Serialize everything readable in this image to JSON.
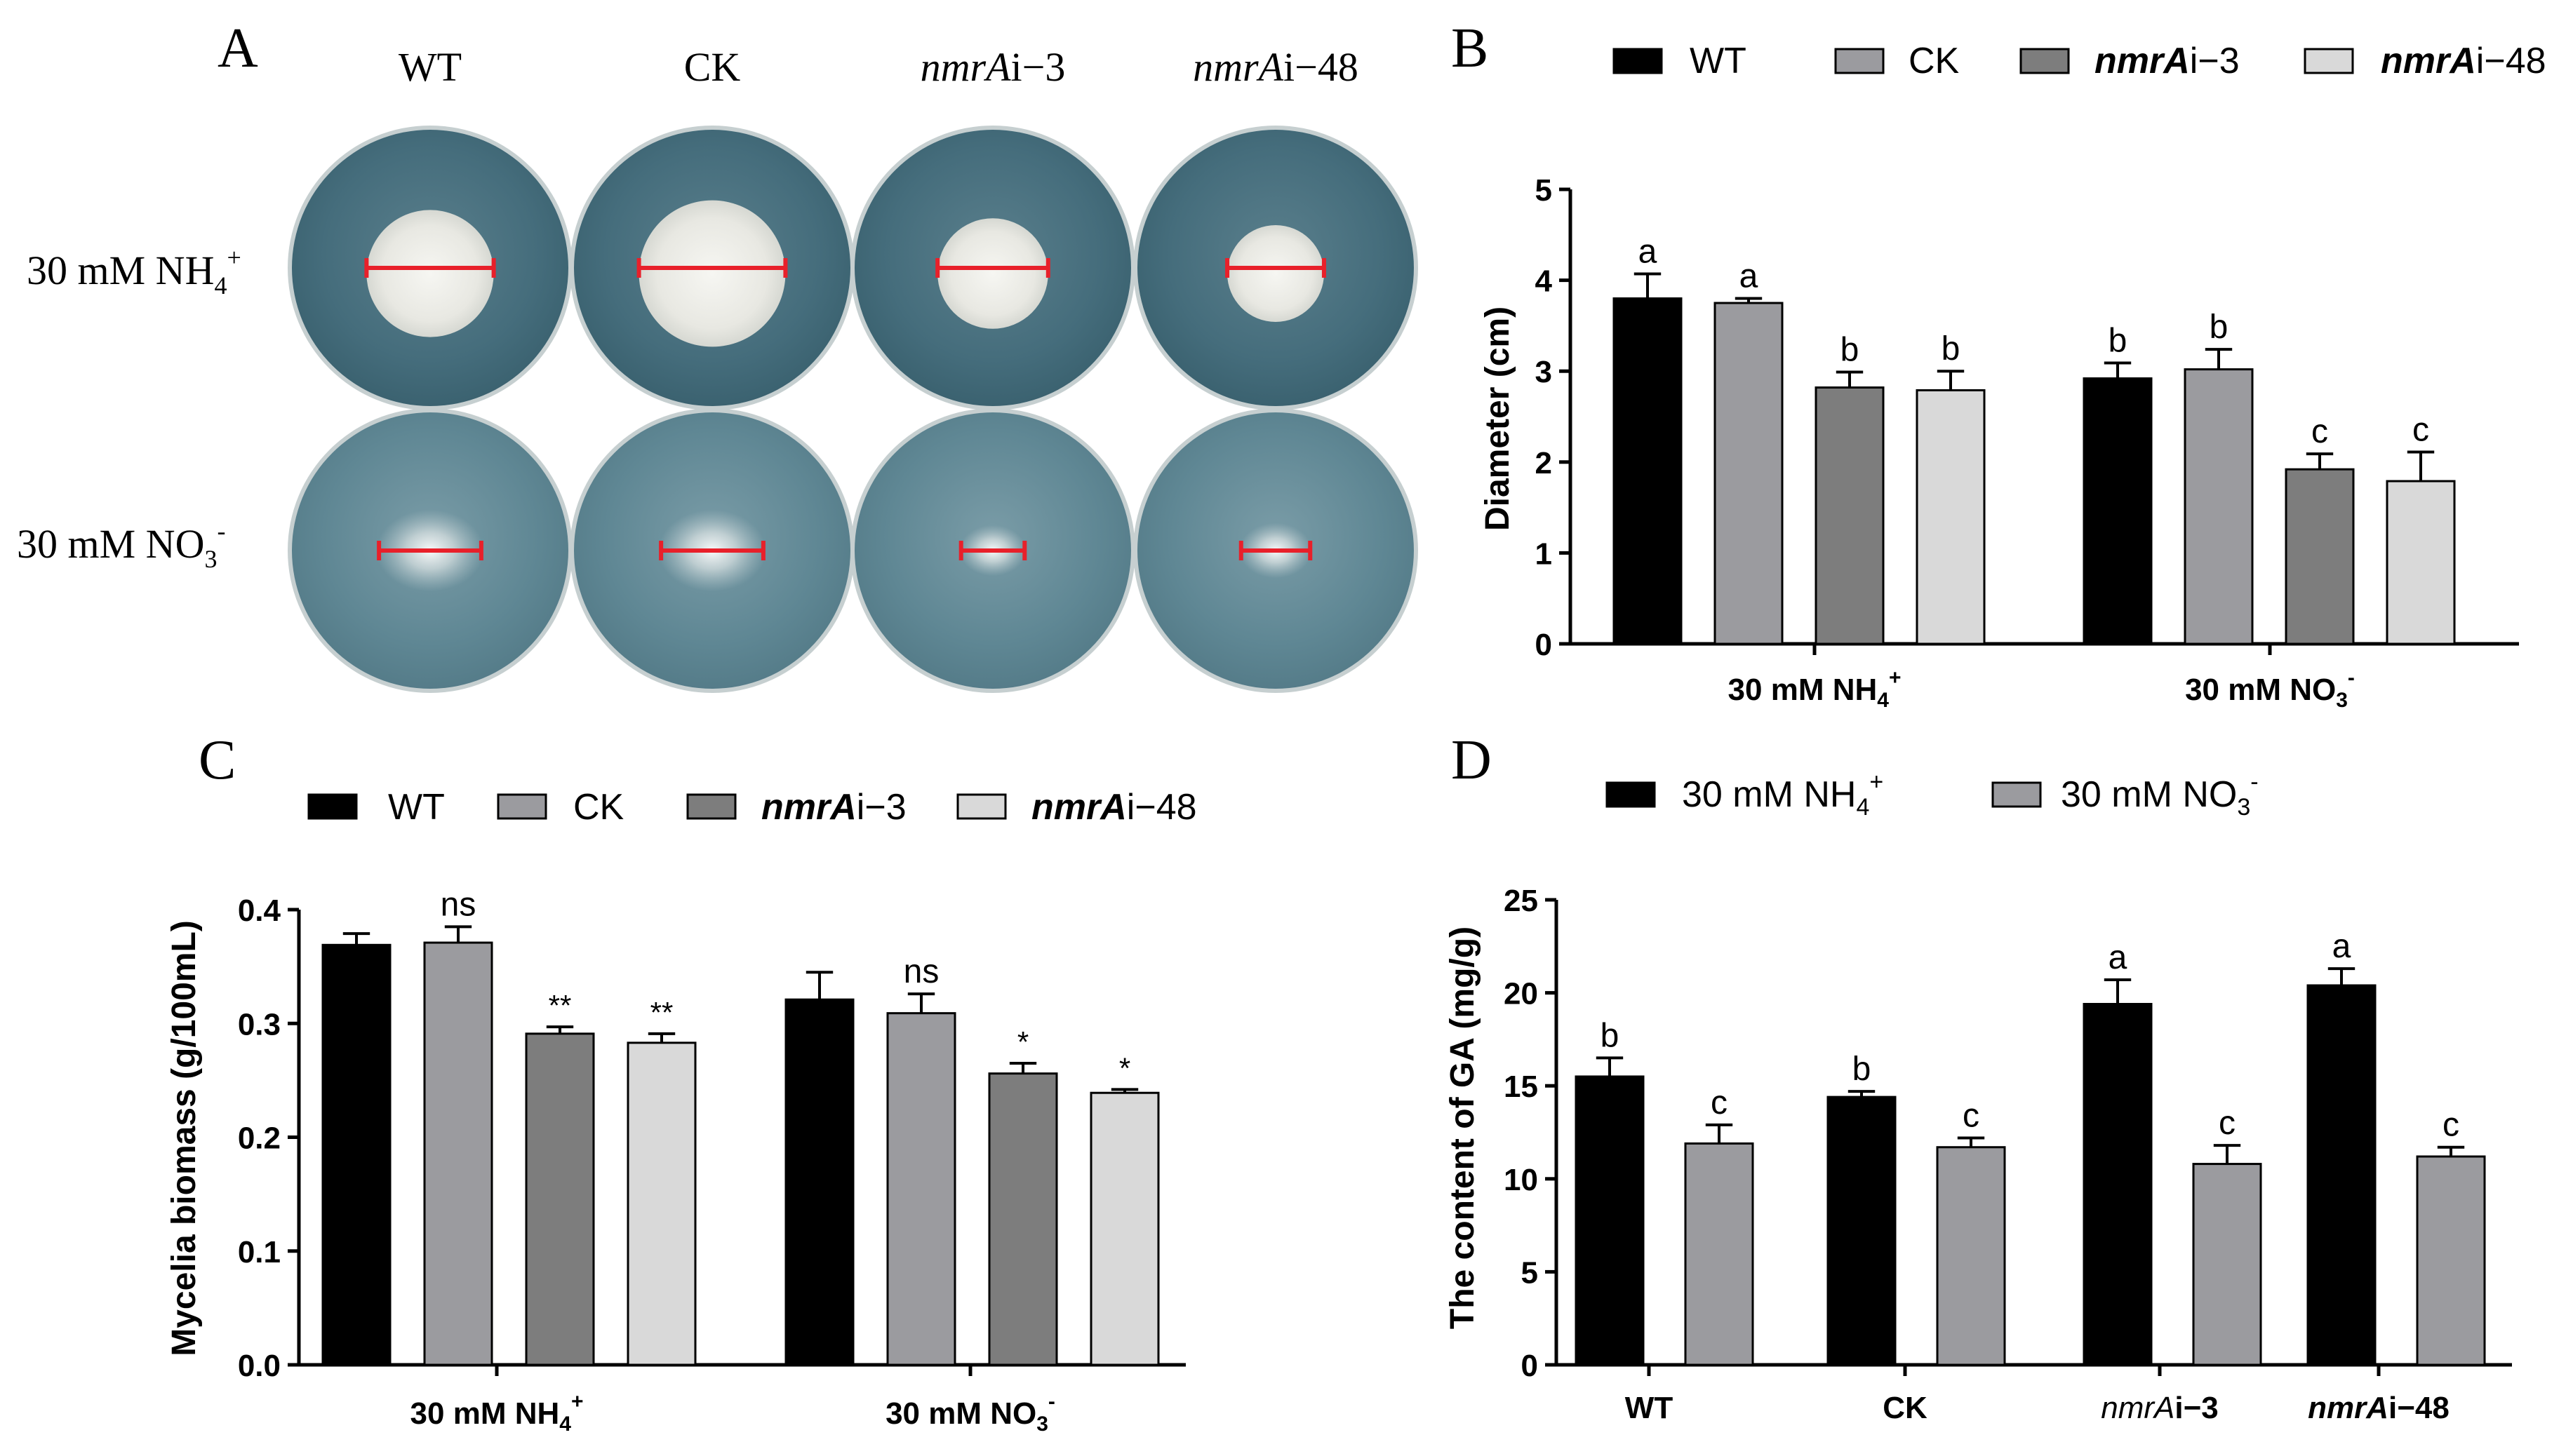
{
  "panels": {
    "A": "A",
    "B": "B",
    "C": "C",
    "D": "D"
  },
  "strain_labels": {
    "wt": "WT",
    "ck": "CK",
    "nmr3_italic": "nmrA",
    "nmr3_rest": "i−3",
    "nmr48_italic": "nmrA",
    "nmr48_rest": "i−48"
  },
  "conditions": {
    "nh4_base": "30 mM NH",
    "nh4_sub": "4",
    "nh4_sup": "+",
    "no3_base": "30 mM NO",
    "no3_sub": "3",
    "no3_sup": "-"
  },
  "colors": {
    "wt": "#000000",
    "ck": "#9b9b9f",
    "nmr3": "#7d7d7d",
    "nmr48": "#d9d9d9",
    "nh4": "#000000",
    "no3": "#9b9b9f",
    "ruler": "#e8202a"
  },
  "chart_data": [
    {
      "panel": "B",
      "type": "bar",
      "categories": [
        "30 mM NH4+",
        "30 mM NO3-"
      ],
      "series": [
        {
          "name": "WT",
          "values": [
            3.8,
            2.92
          ],
          "errors": [
            0.27,
            0.17
          ],
          "labels": [
            "a",
            "b"
          ]
        },
        {
          "name": "CK",
          "values": [
            3.75,
            3.02
          ],
          "errors": [
            0.05,
            0.22
          ],
          "labels": [
            "a",
            "b"
          ]
        },
        {
          "name": "nmrAi-3",
          "values": [
            2.82,
            1.92
          ],
          "errors": [
            0.17,
            0.17
          ],
          "labels": [
            "b",
            "c"
          ]
        },
        {
          "name": "nmrAi-48",
          "values": [
            2.79,
            1.79
          ],
          "errors": [
            0.21,
            0.32
          ],
          "labels": [
            "b",
            "c"
          ]
        }
      ],
      "ylabel": "Diameter (cm)",
      "ylim": [
        0,
        5
      ],
      "yticks": [
        0,
        1,
        2,
        3,
        4,
        5
      ]
    },
    {
      "panel": "C",
      "type": "bar",
      "categories": [
        "30 mM NH4+",
        "30 mM NO3-"
      ],
      "series": [
        {
          "name": "WT",
          "values": [
            0.369,
            0.321
          ],
          "errors": [
            0.01,
            0.024
          ],
          "labels": [
            "",
            ""
          ]
        },
        {
          "name": "CK",
          "values": [
            0.371,
            0.309
          ],
          "errors": [
            0.014,
            0.017
          ],
          "labels": [
            "ns",
            "ns"
          ]
        },
        {
          "name": "nmrAi-3",
          "values": [
            0.291,
            0.256
          ],
          "errors": [
            0.006,
            0.009
          ],
          "labels": [
            "**",
            "*"
          ]
        },
        {
          "name": "nmrAi-48",
          "values": [
            0.283,
            0.239
          ],
          "errors": [
            0.008,
            0.003
          ],
          "labels": [
            "**",
            "*"
          ]
        }
      ],
      "ylabel": "Mycelia biomass (g/100mL)",
      "ylim": [
        0,
        0.4
      ],
      "yticks": [
        "0.0",
        "0.1",
        "0.2",
        "0.3",
        "0.4"
      ]
    },
    {
      "panel": "D",
      "type": "bar",
      "categories": [
        "WT",
        "CK",
        "nmrAi-3",
        "nmrAi-48"
      ],
      "series": [
        {
          "name": "30 mM NH4+",
          "values": [
            15.5,
            14.4,
            19.4,
            20.4
          ],
          "errors": [
            1.0,
            0.3,
            1.3,
            0.9
          ],
          "labels": [
            "b",
            "b",
            "a",
            "a"
          ]
        },
        {
          "name": "30 mM NO3-",
          "values": [
            11.9,
            11.7,
            10.8,
            11.2
          ],
          "errors": [
            1.0,
            0.5,
            1.0,
            0.5
          ],
          "labels": [
            "c",
            "c",
            "c",
            "c"
          ]
        }
      ],
      "ylabel": "The content of GA (mg/g)",
      "ylim": [
        0,
        25
      ],
      "yticks": [
        0,
        5,
        10,
        15,
        20,
        25
      ]
    }
  ],
  "photo": {
    "plates_description_free": true,
    "colony_diameter_rel": [
      [
        0.46,
        0.53,
        0.4,
        0.35
      ],
      [
        0.37,
        0.37,
        0.23,
        0.25
      ]
    ]
  }
}
